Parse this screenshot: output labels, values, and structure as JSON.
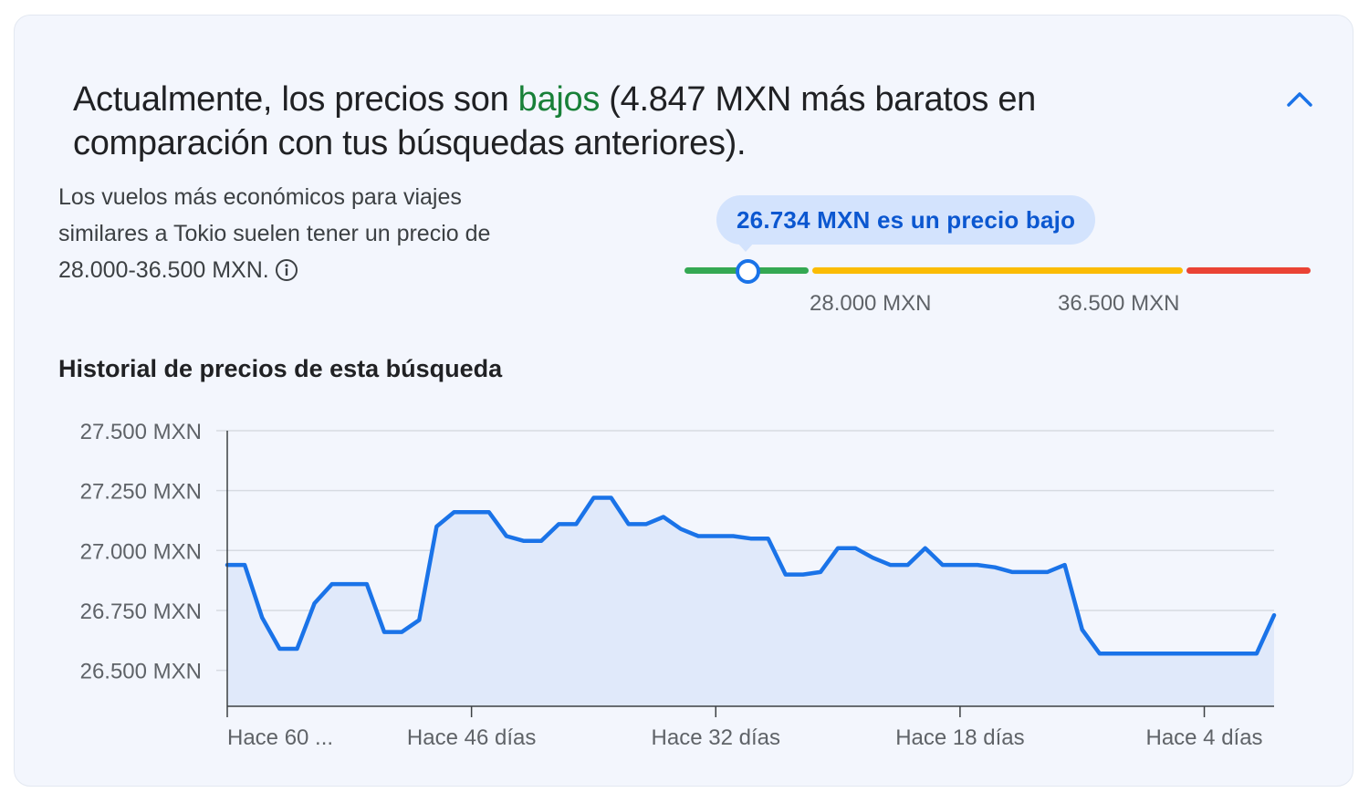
{
  "summary": {
    "prefix": "Actualmente, los precios son ",
    "status_word": "bajos",
    "suffix": " (4.847 MXN más baratos en comparación con tus búsquedas anteriores).",
    "status_color": "#188038"
  },
  "collapse_icon": "chevron-up-icon",
  "typical": {
    "text": "Los vuelos más económicos para viajes similares a Tokio suelen tener un precio de 28.000-36.500 MXN.",
    "info_icon": "info-icon"
  },
  "price_meter": {
    "current_label": "26.734 MXN es un precio bajo",
    "current_value": 26734,
    "low_threshold": 28000,
    "high_threshold": 36500,
    "low_threshold_label": "28.000 MXN",
    "high_threshold_label": "36.500 MXN",
    "colors": {
      "low": "#34a853",
      "typical": "#fbbc04",
      "high": "#ea4335",
      "marker": "#1a73e8"
    }
  },
  "history": {
    "title": "Historial de precios de esta búsqueda"
  },
  "chart_data": {
    "type": "area",
    "title": "Historial de precios de esta búsqueda",
    "xlabel": "",
    "ylabel": "",
    "x_unit": "días atrás",
    "x": [
      60,
      59,
      58,
      57,
      56,
      55,
      54,
      53,
      52,
      51,
      50,
      49,
      48,
      47,
      46,
      45,
      44,
      43,
      42,
      41,
      40,
      39,
      38,
      37,
      36,
      35,
      34,
      33,
      32,
      31,
      30,
      29,
      28,
      27,
      26,
      25,
      24,
      23,
      22,
      21,
      20,
      19,
      18,
      17,
      16,
      15,
      14,
      13,
      12,
      11,
      10,
      9,
      8,
      7,
      6,
      5,
      4,
      3,
      2,
      1,
      0
    ],
    "values": [
      26940,
      26940,
      26720,
      26590,
      26590,
      26780,
      26860,
      26860,
      26860,
      26660,
      26660,
      26710,
      27100,
      27160,
      27160,
      27160,
      27060,
      27040,
      27040,
      27110,
      27110,
      27220,
      27220,
      27110,
      27110,
      27140,
      27090,
      27060,
      27060,
      27060,
      27050,
      27050,
      26900,
      26900,
      26910,
      27010,
      27010,
      26970,
      26940,
      26940,
      27010,
      26940,
      26940,
      26940,
      26930,
      26910,
      26910,
      26910,
      26940,
      26670,
      26570,
      26570,
      26570,
      26570,
      26570,
      26570,
      26570,
      26570,
      26570,
      26570,
      26730
    ],
    "ylim": [
      26350,
      27500
    ],
    "y_ticks": [
      27500,
      27250,
      27000,
      26750,
      26500
    ],
    "y_tick_labels": [
      "27.500 MXN",
      "27.250 MXN",
      "27.000 MXN",
      "26.750 MXN",
      "26.500 MXN"
    ],
    "x_ticks": [
      60,
      46,
      32,
      18,
      4
    ],
    "x_tick_labels": [
      "Hace 60 ...",
      "Hace 46 días",
      "Hace 32 días",
      "Hace 18 días",
      "Hace 4 días"
    ],
    "grid": true,
    "line_color": "#1a73e8",
    "fill_color": "#e0e9fa"
  }
}
